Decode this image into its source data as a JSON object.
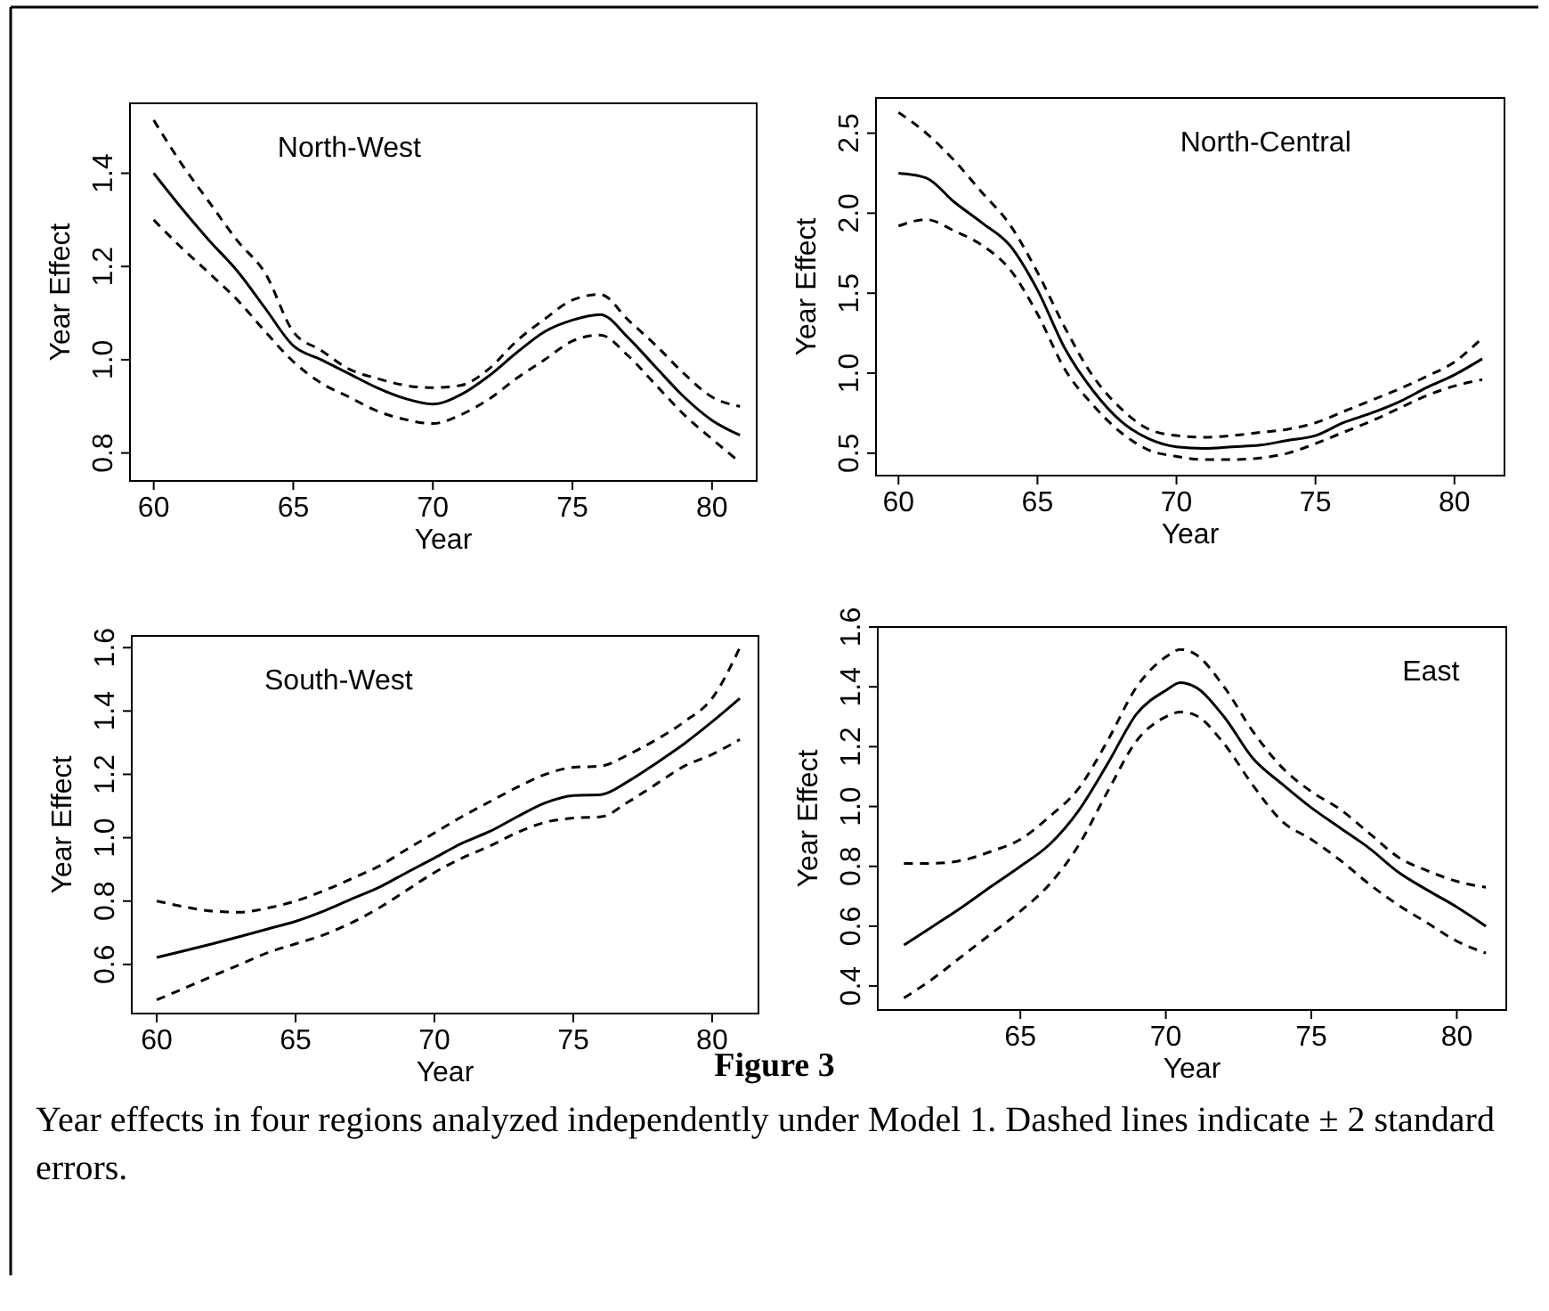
{
  "chart_data": [
    {
      "type": "line",
      "title": "North-West",
      "xlabel": "Year",
      "ylabel": "Year Effect",
      "xlim": [
        59.15,
        81.6
      ],
      "ylim": [
        0.74,
        1.55
      ],
      "xticks": [
        60,
        65,
        70,
        75,
        80
      ],
      "yticks": [
        {
          "value": 0.8,
          "label": "0.8"
        },
        {
          "value": 1,
          "label": "1.0"
        },
        {
          "value": 1.2,
          "label": "1.2"
        },
        {
          "value": 1.4,
          "label": "1.4"
        }
      ],
      "grid": false,
      "x": [
        60,
        61,
        62,
        63,
        64,
        65,
        66,
        67,
        68,
        69,
        70,
        71,
        72,
        73,
        74,
        75,
        76,
        77,
        78,
        79,
        80,
        81
      ],
      "series": [
        {
          "color": "#000000",
          "line_style": "solid",
          "values": [
            1.4,
            1.325,
            1.255,
            1.19,
            1.11,
            1.03,
            1.0,
            0.97,
            0.94,
            0.917,
            0.905,
            0.925,
            0.965,
            1.015,
            1.06,
            1.085,
            1.097,
            1.047,
            0.983,
            0.92,
            0.87,
            0.838
          ]
        },
        {
          "color": "#000000",
          "line_style": "dashed",
          "values": [
            1.514,
            1.42,
            1.337,
            1.255,
            1.185,
            1.06,
            1.02,
            0.98,
            0.96,
            0.945,
            0.94,
            0.945,
            0.98,
            1.04,
            1.087,
            1.128,
            1.14,
            1.085,
            1.03,
            0.97,
            0.92,
            0.9
          ]
        },
        {
          "color": "#000000",
          "line_style": "dashed",
          "values": [
            1.3,
            1.24,
            1.185,
            1.128,
            1.06,
            0.996,
            0.95,
            0.92,
            0.89,
            0.872,
            0.863,
            0.882,
            0.915,
            0.96,
            1.0,
            1.04,
            1.053,
            1.008,
            0.945,
            0.882,
            0.83,
            0.78
          ]
        }
      ]
    },
    {
      "type": "line",
      "title": "North-Central",
      "xlabel": "Year",
      "ylabel": "Year Effect",
      "xlim": [
        59.19,
        81.8
      ],
      "ylim": [
        0.36,
        2.72
      ],
      "xticks": [
        60,
        65,
        70,
        75,
        80
      ],
      "yticks": [
        0.5,
        {
          "value": 1,
          "label": "1.0"
        },
        1.5,
        {
          "value": 2,
          "label": "2.0"
        },
        2.5
      ],
      "grid": false,
      "x": [
        60,
        61,
        62,
        63,
        64,
        65,
        66,
        67,
        68,
        69,
        70,
        71,
        72,
        73,
        74,
        75,
        76,
        77,
        78,
        79,
        80,
        81
      ],
      "series": [
        {
          "color": "#000000",
          "line_style": "solid",
          "values": [
            2.25,
            2.22,
            2.07,
            1.94,
            1.8,
            1.52,
            1.15,
            0.89,
            0.7,
            0.59,
            0.54,
            0.53,
            0.54,
            0.55,
            0.58,
            0.61,
            0.69,
            0.75,
            0.82,
            0.91,
            0.99,
            1.09
          ]
        },
        {
          "color": "#000000",
          "line_style": "dashed",
          "values": [
            2.63,
            2.5,
            2.33,
            2.13,
            1.93,
            1.63,
            1.28,
            0.98,
            0.78,
            0.65,
            0.61,
            0.6,
            0.61,
            0.63,
            0.65,
            0.69,
            0.76,
            0.83,
            0.9,
            0.98,
            1.07,
            1.22
          ]
        },
        {
          "color": "#000000",
          "line_style": "dashed",
          "values": [
            1.92,
            1.96,
            1.89,
            1.8,
            1.65,
            1.37,
            1.02,
            0.8,
            0.63,
            0.52,
            0.48,
            0.46,
            0.46,
            0.47,
            0.5,
            0.56,
            0.63,
            0.7,
            0.78,
            0.86,
            0.92,
            0.96
          ]
        }
      ]
    },
    {
      "type": "line",
      "title": "South-West",
      "xlabel": "Year",
      "ylabel": "Year Effect",
      "xlim": [
        59.1,
        81.67
      ],
      "ylim": [
        0.445,
        1.637
      ],
      "xticks": [
        60,
        65,
        70,
        75,
        80
      ],
      "yticks": [
        0.6,
        0.8,
        {
          "value": 1,
          "label": "1.0"
        },
        1.2,
        1.4,
        1.6
      ],
      "grid": false,
      "x": [
        60,
        61,
        62,
        63,
        64,
        65,
        66,
        67,
        68,
        69,
        70,
        71,
        72,
        73,
        74,
        75,
        76,
        77,
        78,
        79,
        80,
        81
      ],
      "series": [
        {
          "color": "#000000",
          "line_style": "solid",
          "values": [
            0.622,
            0.643,
            0.665,
            0.688,
            0.712,
            0.736,
            0.768,
            0.806,
            0.843,
            0.89,
            0.936,
            0.983,
            1.02,
            1.067,
            1.11,
            1.133,
            1.136,
            1.179,
            1.236,
            1.297,
            1.366,
            1.44
          ]
        },
        {
          "color": "#000000",
          "line_style": "dashed",
          "values": [
            0.8,
            0.782,
            0.768,
            0.765,
            0.778,
            0.8,
            0.832,
            0.87,
            0.91,
            0.963,
            1.015,
            1.067,
            1.114,
            1.16,
            1.2,
            1.222,
            1.226,
            1.263,
            1.31,
            1.366,
            1.44,
            1.6
          ]
        },
        {
          "color": "#000000",
          "line_style": "dashed",
          "values": [
            0.488,
            0.525,
            0.563,
            0.6,
            0.637,
            0.665,
            0.693,
            0.731,
            0.778,
            0.834,
            0.89,
            0.936,
            0.974,
            1.017,
            1.049,
            1.062,
            1.066,
            1.114,
            1.17,
            1.226,
            1.263,
            1.31
          ]
        }
      ]
    },
    {
      "type": "line",
      "title": "East",
      "xlabel": "Year",
      "ylabel": "Year Effect",
      "xlim": [
        60.1,
        81.7
      ],
      "ylim": [
        0.32,
        1.6
      ],
      "xticks": [
        65,
        70,
        75,
        80
      ],
      "yticks": [
        0.4,
        0.6,
        0.8,
        {
          "value": 1,
          "label": "1.0"
        },
        1.2,
        1.4,
        1.6
      ],
      "grid": false,
      "x": [
        61,
        62,
        63,
        64,
        65,
        66,
        67,
        68,
        69,
        70,
        70.5,
        71,
        72,
        73,
        74,
        75,
        76,
        77,
        78,
        79,
        80,
        81
      ],
      "series": [
        {
          "color": "#000000",
          "line_style": "solid",
          "values": [
            0.537,
            0.6,
            0.664,
            0.733,
            0.8,
            0.873,
            0.986,
            1.143,
            1.31,
            1.388,
            1.414,
            1.4,
            1.3,
            1.16,
            1.075,
            0.996,
            0.928,
            0.86,
            0.78,
            0.72,
            0.664,
            0.6
          ]
        },
        {
          "color": "#000000",
          "line_style": "dashed",
          "values": [
            0.81,
            0.81,
            0.82,
            0.85,
            0.89,
            0.966,
            1.06,
            1.22,
            1.4,
            1.5,
            1.525,
            1.51,
            1.4,
            1.25,
            1.13,
            1.05,
            0.99,
            0.91,
            0.83,
            0.785,
            0.75,
            0.73
          ]
        },
        {
          "color": "#000000",
          "line_style": "dashed",
          "values": [
            0.36,
            0.425,
            0.5,
            0.575,
            0.65,
            0.74,
            0.87,
            1.05,
            1.22,
            1.3,
            1.316,
            1.306,
            1.21,
            1.07,
            0.95,
            0.89,
            0.82,
            0.74,
            0.67,
            0.61,
            0.55,
            0.51
          ]
        }
      ],
      "annotations": [
        "Figure 3",
        "Year effects in four regions analyzed independently under Model 1. Dashed lines indicate ± 2 standard errors."
      ]
    }
  ]
}
